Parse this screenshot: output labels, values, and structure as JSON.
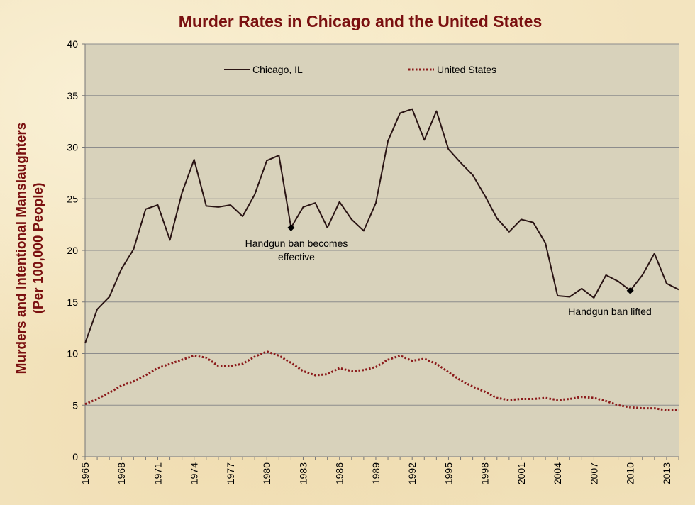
{
  "chart_data": {
    "type": "line",
    "title": "Murder Rates in Chicago and the United States",
    "ylabel_line1": "Murders and Intentional Manslaughters",
    "ylabel_line2": "(Per 100,000 People)",
    "xlabel": "",
    "ylim": [
      0,
      40
    ],
    "yticks": [
      0,
      5,
      10,
      15,
      20,
      25,
      30,
      35,
      40
    ],
    "xlim": [
      1965,
      2014
    ],
    "xticks": [
      1965,
      1968,
      1971,
      1974,
      1977,
      1980,
      1983,
      1986,
      1989,
      1992,
      1995,
      1998,
      2001,
      2004,
      2007,
      2010,
      2013
    ],
    "grid": "horizontal",
    "legend_position": "top",
    "colors": {
      "chicago": "#2a1414",
      "us": "#8b1a1a",
      "plot_bg": "#d8d2bb",
      "title": "#7a1010"
    },
    "series": [
      {
        "name": "Chicago, IL",
        "style": "solid",
        "x": [
          1965,
          1966,
          1967,
          1968,
          1969,
          1970,
          1971,
          1972,
          1973,
          1974,
          1975,
          1976,
          1977,
          1978,
          1979,
          1980,
          1981,
          1982,
          1983,
          1984,
          1985,
          1986,
          1987,
          1988,
          1989,
          1990,
          1991,
          1992,
          1993,
          1994,
          1995,
          1996,
          1997,
          1998,
          1999,
          2000,
          2001,
          2002,
          2003,
          2004,
          2005,
          2006,
          2007,
          2008,
          2009,
          2010,
          2011,
          2012,
          2013,
          2014
        ],
        "values": [
          11.0,
          14.3,
          15.5,
          18.2,
          20.1,
          24.0,
          24.4,
          21.0,
          25.6,
          28.8,
          24.3,
          24.2,
          24.4,
          23.3,
          25.4,
          28.7,
          29.2,
          22.2,
          24.2,
          24.6,
          22.2,
          24.7,
          23.0,
          21.9,
          24.6,
          30.6,
          33.3,
          33.7,
          30.7,
          33.5,
          29.8,
          28.5,
          27.3,
          25.3,
          23.1,
          21.8,
          23.0,
          22.7,
          20.7,
          15.6,
          15.5,
          16.3,
          15.4,
          17.6,
          17.0,
          16.1,
          17.6,
          19.7,
          16.8,
          16.2
        ]
      },
      {
        "name": "United States",
        "style": "dotted",
        "x": [
          1965,
          1966,
          1967,
          1968,
          1969,
          1970,
          1971,
          1972,
          1973,
          1974,
          1975,
          1976,
          1977,
          1978,
          1979,
          1980,
          1981,
          1982,
          1983,
          1984,
          1985,
          1986,
          1987,
          1988,
          1989,
          1990,
          1991,
          1992,
          1993,
          1994,
          1995,
          1996,
          1997,
          1998,
          1999,
          2000,
          2001,
          2002,
          2003,
          2004,
          2005,
          2006,
          2007,
          2008,
          2009,
          2010,
          2011,
          2012,
          2013,
          2014
        ],
        "values": [
          5.1,
          5.6,
          6.2,
          6.9,
          7.3,
          7.9,
          8.6,
          9.0,
          9.4,
          9.8,
          9.6,
          8.8,
          8.8,
          9.0,
          9.7,
          10.2,
          9.8,
          9.1,
          8.3,
          7.9,
          8.0,
          8.6,
          8.3,
          8.4,
          8.7,
          9.4,
          9.8,
          9.3,
          9.5,
          9.0,
          8.2,
          7.4,
          6.8,
          6.3,
          5.7,
          5.5,
          5.6,
          5.6,
          5.7,
          5.5,
          5.6,
          5.8,
          5.7,
          5.4,
          5.0,
          4.8,
          4.7,
          4.7,
          4.5,
          4.5
        ]
      }
    ],
    "annotations": [
      {
        "id": "ban-effective",
        "x": 1982,
        "y": 22.2,
        "text_line1": "Handgun  ban becomes",
        "text_line2": "effective"
      },
      {
        "id": "ban-lifted",
        "x": 2010,
        "y": 16.1,
        "text_line1": "Handgun  ban lifted",
        "text_line2": ""
      }
    ]
  }
}
